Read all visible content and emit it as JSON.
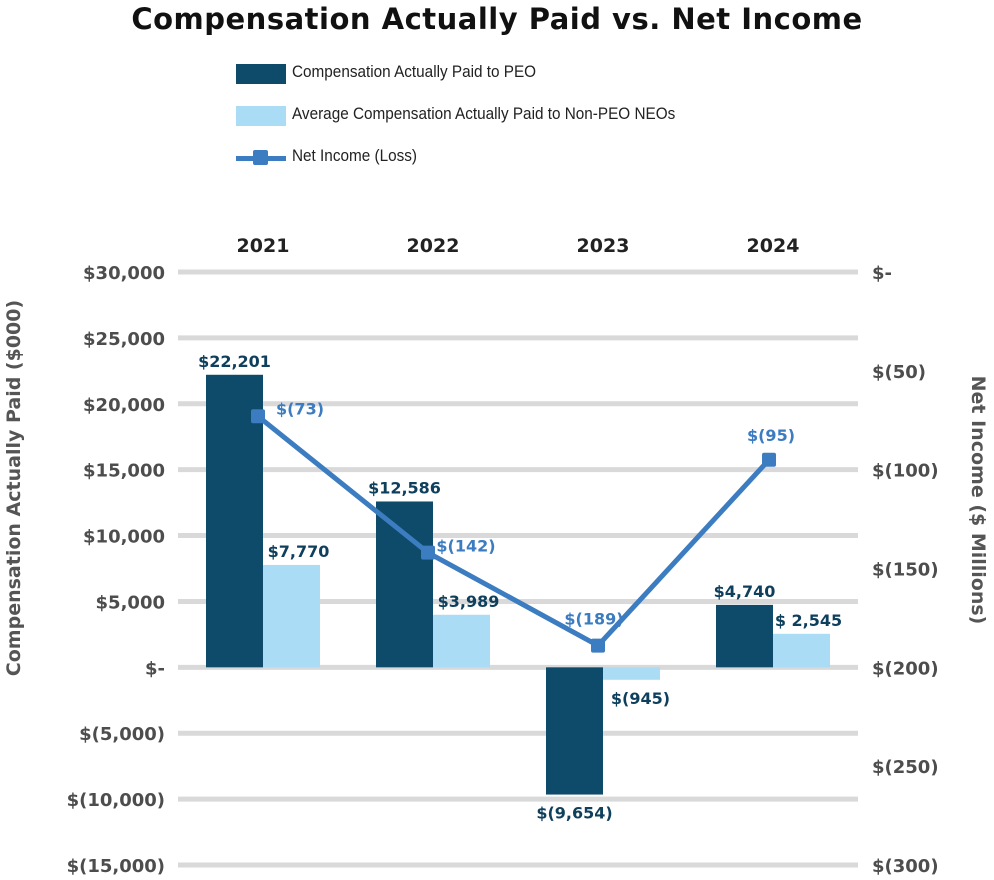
{
  "chart_data": {
    "type": "bar",
    "title": "Compensation Actually Paid vs. Net Income",
    "categories": [
      "2021",
      "2022",
      "2023",
      "2024"
    ],
    "series": [
      {
        "name": "Compensation Actually Paid to PEO",
        "kind": "bar",
        "axis": "left",
        "color": "#0e4a6a",
        "values": [
          22201,
          12586,
          -9654,
          4740
        ],
        "labels": [
          "$22,201",
          "$12,586",
          "$(9,654)",
          "$4,740"
        ]
      },
      {
        "name": "Average Compensation Actually Paid to Non-PEO NEOs",
        "kind": "bar",
        "axis": "left",
        "color": "#aadcf5",
        "values": [
          7770,
          3989,
          -945,
          2545
        ],
        "labels": [
          "$7,770",
          "$3,989",
          "$(945)",
          "$ 2,545"
        ]
      },
      {
        "name": "Net Income (Loss)",
        "kind": "line",
        "axis": "right",
        "color": "#3c7cc0",
        "values": [
          -73,
          -142,
          -189,
          -95
        ],
        "labels": [
          "$(73)",
          "$(142)",
          "$(189)",
          "$(95)"
        ]
      }
    ],
    "y_left": {
      "label": "Compensation Actually Paid ($000)",
      "min": -15000,
      "max": 30000,
      "ticks": [
        30000,
        25000,
        20000,
        15000,
        10000,
        5000,
        0,
        -5000,
        -10000,
        -15000
      ],
      "tick_labels": [
        "$30,000",
        "$25,000",
        "$20,000",
        "$15,000",
        "$10,000",
        "$5,000",
        "$-",
        "$(5,000)",
        "$(10,000)",
        "$(15,000)"
      ]
    },
    "y_right": {
      "label": "Net Income ($ Millions)",
      "min": -300,
      "max": 0,
      "ticks": [
        0,
        -50,
        -100,
        -150,
        -200,
        -250,
        -300
      ],
      "tick_labels": [
        "$-",
        "$(50)",
        "$(100)",
        "$(150)",
        "$(200)",
        "$(250)",
        "$(300)"
      ]
    },
    "grid": true,
    "legend_position": "top",
    "category_axis_position": "top"
  }
}
